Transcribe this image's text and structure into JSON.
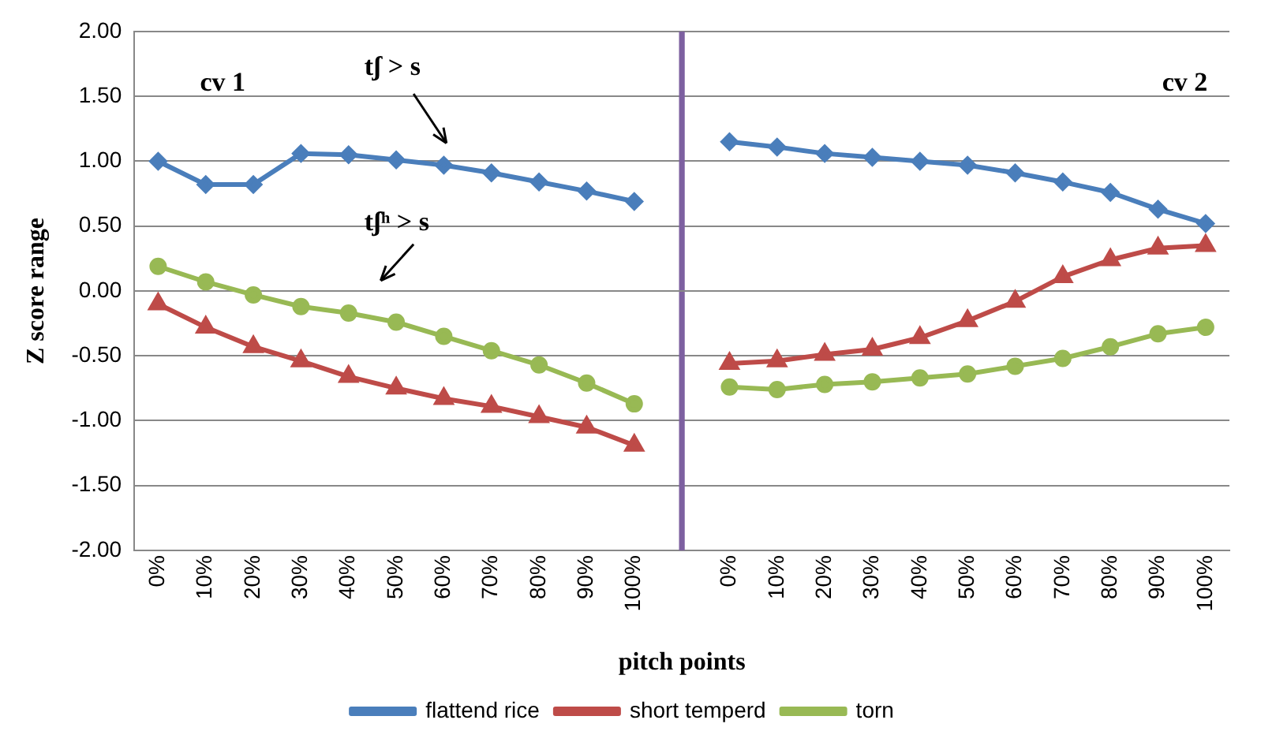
{
  "chart_data": {
    "type": "line",
    "xlabel": "pitch points",
    "ylabel": "Z score range",
    "categories": [
      "0%",
      "10%",
      "20%",
      "30%",
      "40%",
      "50%",
      "60%",
      "70%",
      "80%",
      "90%",
      "100%",
      null,
      "0%",
      "10%",
      "20%",
      "30%",
      "40%",
      "50%",
      "60%",
      "70%",
      "80%",
      "90%",
      "100%"
    ],
    "ylim": [
      -2,
      2
    ],
    "yticks": [
      {
        "value": -2,
        "label": "-2.00"
      },
      {
        "value": -1.5,
        "label": "-1.50"
      },
      {
        "value": -1,
        "label": "-1.00"
      },
      {
        "value": -0.5,
        "label": "-0.50"
      },
      {
        "value": 0,
        "label": "0.00"
      },
      {
        "value": 0.5,
        "label": "0.50"
      },
      {
        "value": 1,
        "label": "1.00"
      },
      {
        "value": 1.5,
        "label": "1.50"
      },
      {
        "value": 2,
        "label": "2.00"
      }
    ],
    "grid": "y",
    "legend": "bottom",
    "annotations": [
      "cv 1",
      "cv 2",
      "tʃ > s",
      "tʃʰ > s"
    ],
    "series": [
      {
        "name": "flattend rice",
        "color": "#4a7ebb",
        "marker": "diamond",
        "values": [
          1.0,
          0.82,
          0.82,
          1.06,
          1.05,
          1.01,
          0.97,
          0.91,
          0.84,
          0.77,
          0.69,
          null,
          1.15,
          1.11,
          1.06,
          1.03,
          1.0,
          0.97,
          0.91,
          0.84,
          0.76,
          0.63,
          0.52
        ]
      },
      {
        "name": "short temperd",
        "color": "#be4b48",
        "marker": "triangle",
        "values": [
          -0.1,
          -0.28,
          -0.43,
          -0.54,
          -0.66,
          -0.75,
          -0.83,
          -0.89,
          -0.97,
          -1.05,
          -1.19,
          null,
          -0.56,
          -0.54,
          -0.49,
          -0.45,
          -0.36,
          -0.23,
          -0.08,
          0.11,
          0.24,
          0.33,
          0.35
        ]
      },
      {
        "name": "torn",
        "color": "#98b954",
        "marker": "circle",
        "values": [
          0.19,
          0.07,
          -0.03,
          -0.12,
          -0.17,
          -0.24,
          -0.35,
          -0.46,
          -0.57,
          -0.71,
          -0.87,
          null,
          -0.74,
          -0.76,
          -0.72,
          -0.7,
          -0.67,
          -0.64,
          -0.58,
          -0.52,
          -0.43,
          -0.33,
          -0.28
        ]
      },
      {
        "type": "bar",
        "color": "#7d60a0",
        "values": [
          null,
          null,
          null,
          null,
          null,
          null,
          null,
          null,
          null,
          null,
          null,
          2,
          null,
          null,
          null,
          null,
          null,
          null,
          null,
          null,
          null,
          null,
          null
        ]
      },
      {
        "type": "bar",
        "color": "#7d60a0",
        "values": [
          null,
          null,
          null,
          null,
          null,
          null,
          null,
          null,
          null,
          null,
          null,
          -2,
          null,
          null,
          null,
          null,
          null,
          null,
          null,
          null,
          null,
          null,
          null
        ]
      }
    ]
  }
}
